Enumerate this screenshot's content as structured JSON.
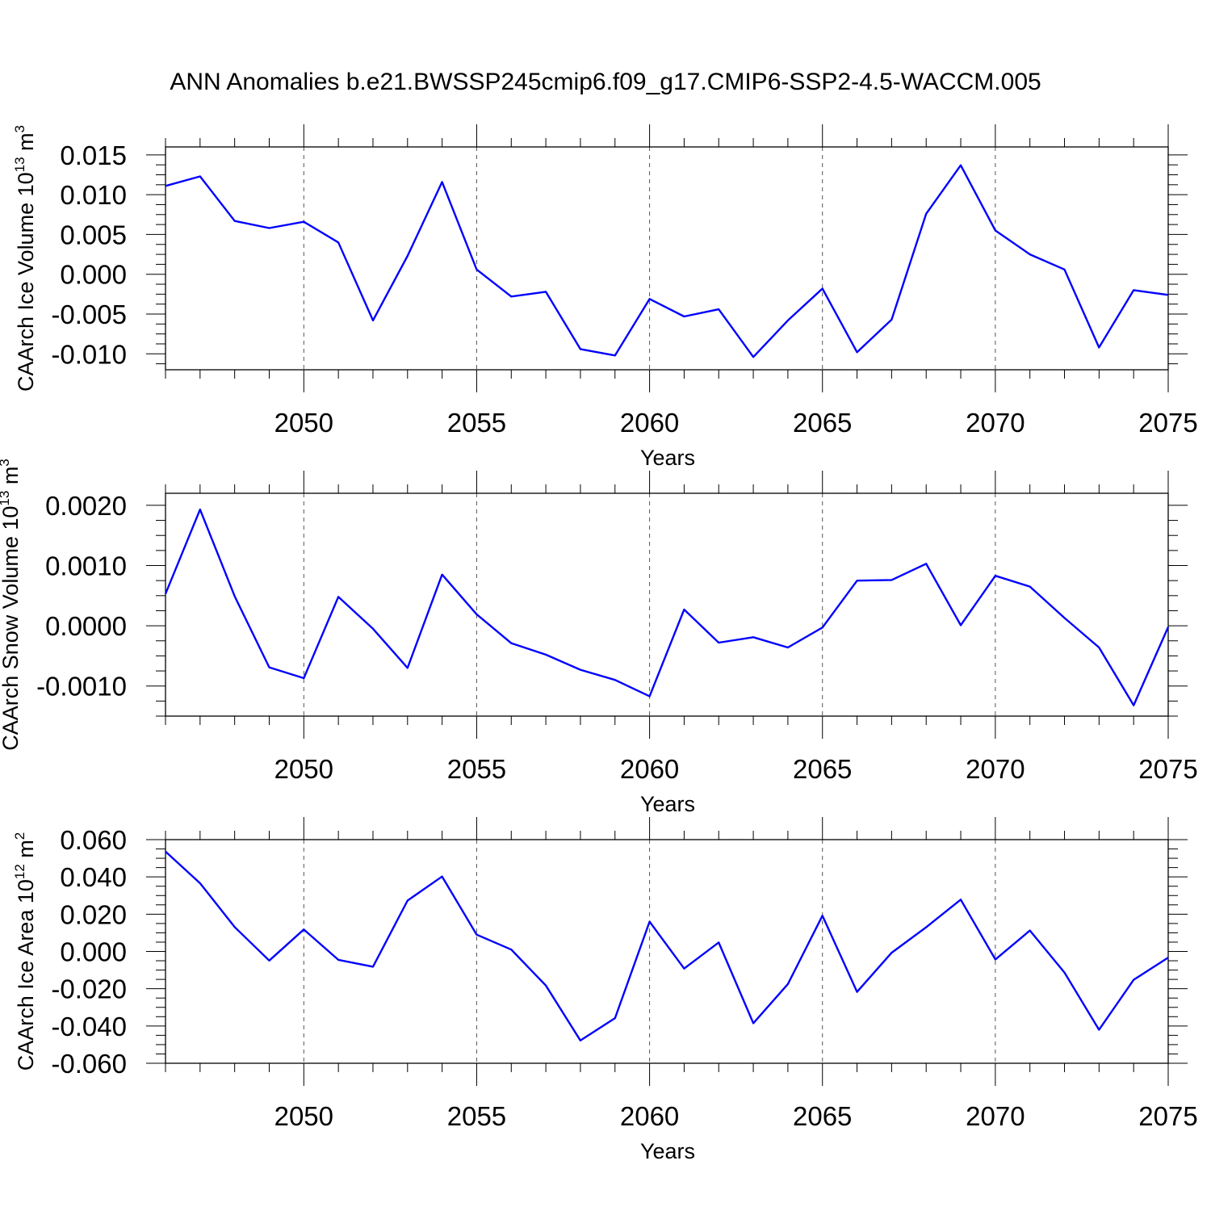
{
  "title": "ANN Anomalies b.e21.BWSSP245cmip6.f09_g17.CMIP6-SSP2-4.5-WACCM.005",
  "chart_data": [
    {
      "type": "line",
      "ylabel_main": "CAArch Ice Volume 10",
      "ylabel_exp": "13",
      "ylabel_unit": " m",
      "ylabel_unit_exp": "3",
      "xlabel": "Years",
      "xlim": [
        2046,
        2075
      ],
      "ylim": [
        -0.012,
        0.016
      ],
      "xticks": [
        2050,
        2055,
        2060,
        2065,
        2070,
        2075
      ],
      "yticks": [
        -0.01,
        -0.005,
        0.0,
        0.005,
        0.01,
        0.015
      ],
      "ytick_labels": [
        "-0.010",
        "-0.005",
        "0.000",
        "0.005",
        "0.010",
        "0.015"
      ],
      "grid": "dashed vertical at major x ticks",
      "series": [
        {
          "name": "CAArch Ice Volume",
          "color": "#0000ff",
          "x": [
            2046,
            2047,
            2048,
            2049,
            2050,
            2051,
            2052,
            2053,
            2054,
            2055,
            2056,
            2057,
            2058,
            2059,
            2060,
            2061,
            2062,
            2063,
            2064,
            2065,
            2066,
            2067,
            2068,
            2069,
            2070,
            2071,
            2072,
            2073,
            2074,
            2075
          ],
          "values": [
            0.0111,
            0.0123,
            0.0067,
            0.0058,
            0.0066,
            0.004,
            -0.0058,
            0.0023,
            0.0116,
            0.0006,
            -0.0028,
            -0.0022,
            -0.0094,
            -0.0102,
            -0.0031,
            -0.0053,
            -0.0044,
            -0.0104,
            -0.0058,
            -0.0018,
            -0.0098,
            -0.0057,
            0.0076,
            0.0137,
            0.0055,
            0.0025,
            0.0006,
            -0.0092,
            -0.002,
            -0.0026
          ]
        }
      ]
    },
    {
      "type": "line",
      "ylabel_main": "CAArch Snow Volume 10",
      "ylabel_exp": "13",
      "ylabel_unit": " m",
      "ylabel_unit_exp": "3",
      "xlabel": "Years",
      "xlim": [
        2046,
        2075
      ],
      "ylim": [
        -0.0015,
        0.0022
      ],
      "xticks": [
        2050,
        2055,
        2060,
        2065,
        2070,
        2075
      ],
      "yticks": [
        -0.001,
        0.0,
        0.001,
        0.002
      ],
      "ytick_labels": [
        "-0.0010",
        "0.0000",
        "0.0010",
        "0.0020"
      ],
      "grid": "dashed vertical at major x ticks",
      "series": [
        {
          "name": "CAArch Snow Volume",
          "color": "#0000ff",
          "x": [
            2046,
            2047,
            2048,
            2049,
            2050,
            2051,
            2052,
            2053,
            2054,
            2055,
            2056,
            2057,
            2058,
            2059,
            2060,
            2061,
            2062,
            2063,
            2064,
            2065,
            2066,
            2067,
            2068,
            2069,
            2070,
            2071,
            2072,
            2073,
            2074,
            2075
          ],
          "values": [
            0.00053,
            0.00193,
            0.00049,
            -0.00069,
            -0.00087,
            0.00048,
            -5e-05,
            -0.0007,
            0.00085,
            0.00019,
            -0.00029,
            -0.00048,
            -0.00073,
            -0.0009,
            -0.00117,
            0.00027,
            -0.00028,
            -0.00019,
            -0.00036,
            -3e-05,
            0.00075,
            0.00076,
            0.00103,
            1e-05,
            0.00083,
            0.00065,
            0.00013,
            -0.00036,
            -0.00132,
            -2e-05
          ]
        }
      ]
    },
    {
      "type": "line",
      "ylabel_main": "CAArch Ice Area 10",
      "ylabel_exp": "12",
      "ylabel_unit": " m",
      "ylabel_unit_exp": "2",
      "xlabel": "Years",
      "xlim": [
        2046,
        2075
      ],
      "ylim": [
        -0.06,
        0.06
      ],
      "xticks": [
        2050,
        2055,
        2060,
        2065,
        2070,
        2075
      ],
      "yticks": [
        -0.06,
        -0.04,
        -0.02,
        0.0,
        0.02,
        0.04,
        0.06
      ],
      "ytick_labels": [
        "-0.060",
        "-0.040",
        "-0.020",
        "0.000",
        "0.020",
        "0.040",
        "0.060"
      ],
      "grid": "dashed vertical at major x ticks",
      "series": [
        {
          "name": "CAArch Ice Area",
          "color": "#0000ff",
          "x": [
            2046,
            2047,
            2048,
            2049,
            2050,
            2051,
            2052,
            2053,
            2054,
            2055,
            2056,
            2057,
            2058,
            2059,
            2060,
            2061,
            2062,
            2063,
            2064,
            2065,
            2066,
            2067,
            2068,
            2069,
            2070,
            2071,
            2072,
            2073,
            2074,
            2075
          ],
          "values": [
            0.0536,
            0.0366,
            0.0131,
            -0.0049,
            0.0118,
            -0.0045,
            -0.0082,
            0.0273,
            0.0402,
            0.009,
            0.001,
            -0.0183,
            -0.0478,
            -0.0358,
            0.016,
            -0.0092,
            0.0048,
            -0.0385,
            -0.0175,
            0.0192,
            -0.0217,
            -0.0007,
            0.013,
            0.0278,
            -0.0043,
            0.0112,
            -0.0113,
            -0.042,
            -0.0152,
            -0.0033
          ]
        }
      ]
    }
  ]
}
